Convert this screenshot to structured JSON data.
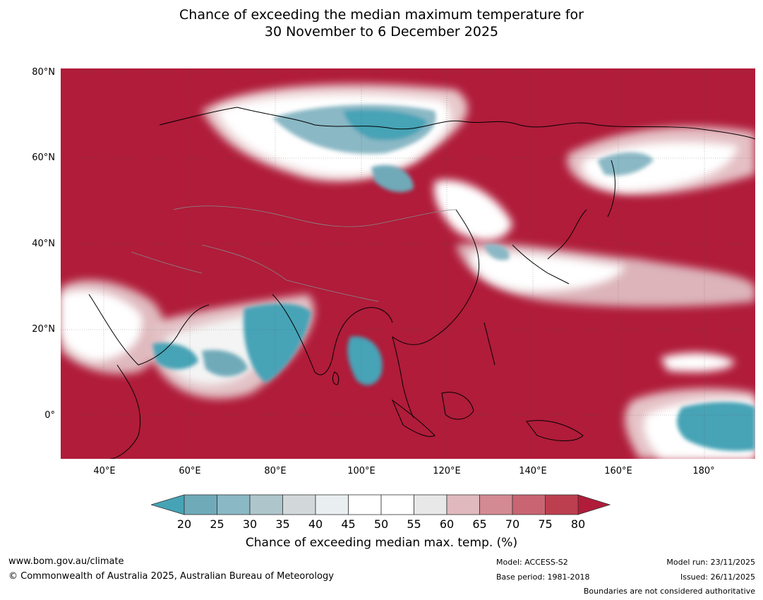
{
  "title": {
    "line1": "Chance of exceeding the median maximum temperature for",
    "line2": "30 November to 6 December 2025"
  },
  "axes": {
    "lat_labels": [
      "80°N",
      "60°N",
      "40°N",
      "20°N",
      "0°"
    ],
    "lon_labels": [
      "40°E",
      "60°E",
      "80°E",
      "100°E",
      "120°E",
      "140°E",
      "160°E",
      "180°"
    ],
    "lat_range": [
      -10,
      80
    ],
    "lon_range": [
      30,
      192
    ]
  },
  "colorbar": {
    "ticks": [
      "20",
      "25",
      "30",
      "35",
      "40",
      "45",
      "50",
      "55",
      "60",
      "65",
      "70",
      "75",
      "80"
    ],
    "title": "Chance of exceeding median max. temp. (%)",
    "colors": [
      "#46a3b6",
      "#6faab9",
      "#8ab8c5",
      "#aec5cb",
      "#d2d8da",
      "#e9eff1",
      "#ffffff",
      "#ffffff",
      "#e8e8e8",
      "#dfb9be",
      "#d48a93",
      "#c96572",
      "#bc3f50",
      "#b01c3a"
    ]
  },
  "footer": {
    "website": "www.bom.gov.au/climate",
    "copyright": "© Commonwealth of Australia 2025, Australian Bureau of Meteorology",
    "model": "Model: ACCESS-S2",
    "base_period": "Base period: 1981-2018",
    "model_run": "Model run: 23/11/2025",
    "issued": "Issued: 26/11/2025",
    "disclaimer": "Boundaries are not considered authoritative"
  },
  "colors": {
    "warm_dominant": "#b01c3a",
    "cool_dominant": "#46a3b6",
    "neutral": "#ffffff"
  }
}
